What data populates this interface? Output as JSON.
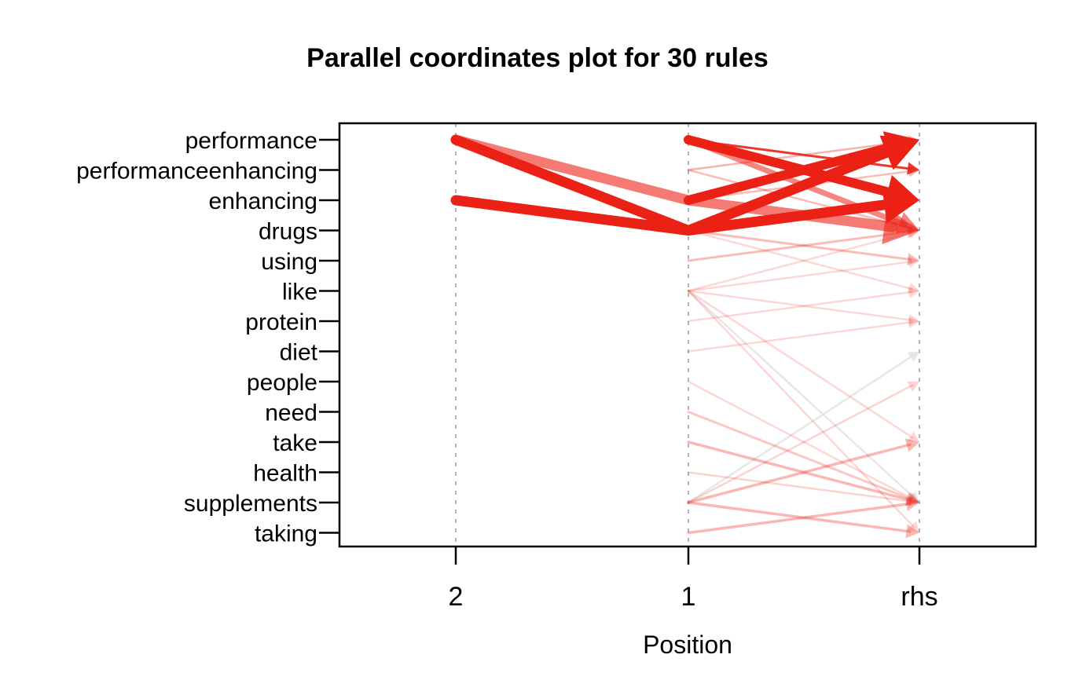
{
  "title": "Parallel coordinates plot for 30 rules",
  "chart_data": {
    "type": "parallel-coordinates",
    "title": "Parallel coordinates plot for 30 rules",
    "xlabel": "Position",
    "x_ticks": [
      "2",
      "1",
      "rhs"
    ],
    "items": [
      "performance",
      "performanceenhancing",
      "enhancing",
      "drugs",
      "using",
      "like",
      "protein",
      "diet",
      "people",
      "need",
      "take",
      "health",
      "supplements",
      "taking"
    ],
    "line_color": "#ec2115",
    "gray_line_color": "#e4e4e4",
    "grid_color": "#b3b3b3",
    "frame_color": "#000000",
    "legend": "none",
    "grid": "dashed-vertical",
    "rules": [
      {
        "lhs2": "performance",
        "lhs1": "drugs",
        "rhs": "enhancing",
        "w": 13,
        "a": 1
      },
      {
        "lhs2": "enhancing",
        "lhs1": "drugs",
        "rhs": "performance",
        "w": 13,
        "a": 1
      },
      {
        "lhs1": "performance",
        "rhs": "enhancing",
        "w": 12,
        "a": 1
      },
      {
        "lhs1": "enhancing",
        "rhs": "performance",
        "w": 12,
        "a": 1
      },
      {
        "lhs2": "performance",
        "lhs1": "enhancing",
        "rhs": "drugs",
        "w": 13,
        "a": 0.6
      },
      {
        "lhs1": "performance",
        "rhs": "drugs",
        "w": 7,
        "a": 0.55
      },
      {
        "lhs1": "performance",
        "rhs": "performanceenhancing",
        "w": 3,
        "a": 0.9
      },
      {
        "lhs1": "performanceenhancing",
        "rhs": "performance",
        "w": 2.5,
        "a": 0.35
      },
      {
        "lhs1": "enhancing",
        "rhs": "performanceenhancing",
        "w": 2.5,
        "a": 0.3
      },
      {
        "lhs1": "performanceenhancing",
        "rhs": "drugs",
        "w": 2.5,
        "a": 0.3
      },
      {
        "lhs1": "drugs",
        "rhs": "using",
        "w": 3,
        "a": 0.3
      },
      {
        "lhs1": "using",
        "rhs": "drugs",
        "w": 3,
        "a": 0.3
      },
      {
        "lhs1": "like",
        "rhs": "using",
        "w": 2.5,
        "a": 0.18
      },
      {
        "lhs1": "protein",
        "rhs": "like",
        "w": 2.5,
        "a": 0.18
      },
      {
        "lhs1": "drugs",
        "rhs": "like",
        "w": 2.5,
        "a": 0.18
      },
      {
        "lhs1": "like",
        "rhs": "protein",
        "w": 2.5,
        "a": 0.18
      },
      {
        "lhs1": "diet",
        "rhs": "protein",
        "w": 2.5,
        "a": 0.18
      },
      {
        "lhs1": "like",
        "rhs": "drugs",
        "w": 2.5,
        "a": 0.18
      },
      {
        "lhs1": "like",
        "rhs": "supplements",
        "w": 2.5,
        "a": 0.9,
        "color": "#e4e4e4"
      },
      {
        "lhs1": "like",
        "rhs": "taking",
        "w": 2.5,
        "a": 0.18
      },
      {
        "lhs1": "like",
        "rhs": "take",
        "w": 2.5,
        "a": 0.18
      },
      {
        "lhs1": "supplements",
        "rhs": "take",
        "w": 3.5,
        "a": 0.32
      },
      {
        "lhs1": "supplements",
        "rhs": "taking",
        "w": 3.5,
        "a": 0.32
      },
      {
        "lhs1": "supplements",
        "rhs": "diet",
        "w": 2.5,
        "a": 0.9,
        "color": "#e4e4e4"
      },
      {
        "lhs1": "supplements",
        "rhs": "people",
        "w": 2.5,
        "a": 0.2
      },
      {
        "lhs1": "take",
        "rhs": "supplements",
        "w": 3.5,
        "a": 0.32
      },
      {
        "lhs1": "taking",
        "rhs": "supplements",
        "w": 3.5,
        "a": 0.32
      },
      {
        "lhs1": "need",
        "rhs": "supplements",
        "w": 3,
        "a": 0.25
      },
      {
        "lhs1": "people",
        "rhs": "supplements",
        "w": 2.5,
        "a": 0.18
      },
      {
        "lhs1": "health",
        "rhs": "supplements",
        "w": 2.5,
        "a": 0.2
      }
    ]
  }
}
